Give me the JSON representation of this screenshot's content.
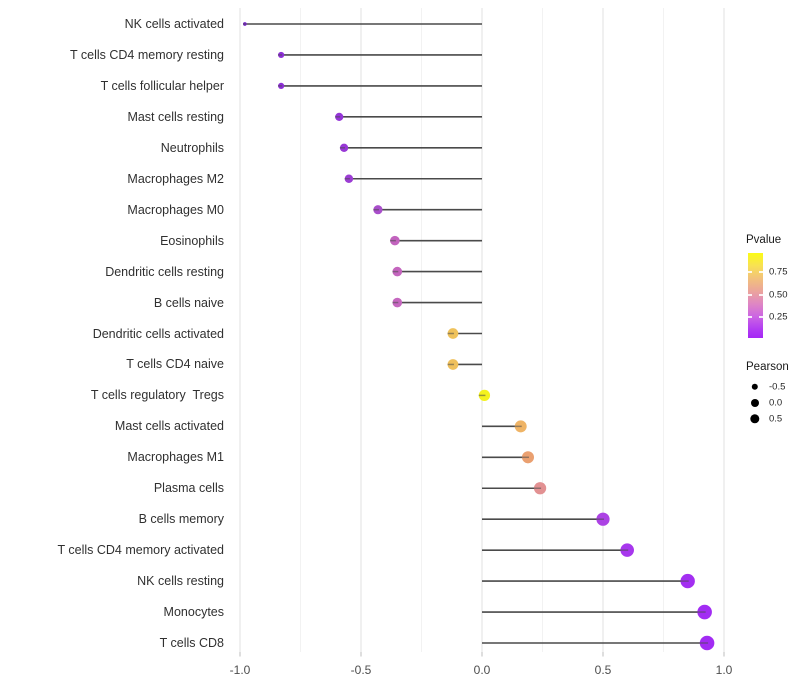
{
  "chart_data": {
    "type": "lollipop",
    "orientation": "horizontal",
    "title": "",
    "xlabel": "",
    "ylabel": "",
    "categories": [
      "NK cells activated",
      "T cells CD4 memory resting",
      "T cells follicular helper",
      "Mast cells resting",
      "Neutrophils",
      "Macrophages M2",
      "Macrophages M0",
      "Eosinophils",
      "Dendritic cells resting",
      "B cells naive",
      "Dendritic cells activated",
      "T cells CD4 naive",
      "T cells regulatory  Tregs",
      "Mast cells activated",
      "Macrophages M1",
      "Plasma cells",
      "B cells memory",
      "T cells CD4 memory activated",
      "NK cells resting",
      "Monocytes",
      "T cells CD8"
    ],
    "series": [
      {
        "name": "Pearson",
        "values": [
          -0.98,
          -0.83,
          -0.83,
          -0.59,
          -0.57,
          -0.55,
          -0.43,
          -0.36,
          -0.35,
          -0.35,
          -0.12,
          -0.12,
          0.01,
          0.16,
          0.19,
          0.24,
          0.5,
          0.6,
          0.85,
          0.92,
          0.93
        ]
      }
    ],
    "point_colors": [
      "#7B24D1",
      "#8C2ED6",
      "#8C2ED6",
      "#9535D8",
      "#9838D6",
      "#9C3DD4",
      "#A94ECB",
      "#C263BE",
      "#C465BE",
      "#C567BF",
      "#EFC25B",
      "#EFC05C",
      "#F4F21E",
      "#EFB466",
      "#EAA070",
      "#E29192",
      "#AC42E4",
      "#A737ED",
      "#A32FF1",
      "#A22CF3",
      "#A22BF3"
    ],
    "xlim": [
      -1.05,
      1.05
    ],
    "x_ticks": [
      -1.0,
      -0.5,
      0.0,
      0.5,
      1.0
    ],
    "x_tick_labels": [
      "-1.0",
      "-0.5",
      "0.0",
      "0.5",
      "1.0"
    ],
    "x_minor_ticks": [
      -0.75,
      -0.25,
      0.25,
      0.75
    ],
    "grid": "vertical major and minor, light gray on white",
    "legend_position": "right",
    "stem_color": "#4A4A4A"
  },
  "legend": {
    "pvalue": {
      "title": "Pvalue",
      "tick_labels": [
        "0.75",
        "0.50",
        "0.25"
      ],
      "tick_values": [
        0.75,
        0.5,
        0.25
      ],
      "gradient_top_color": "#FBFB15",
      "gradient_mid_color": "#EBA49C",
      "gradient_bottom_color": "#A527F5"
    },
    "pearson": {
      "title": "Pearson",
      "items": [
        {
          "label": "-0.5",
          "value": -0.5
        },
        {
          "label": "0.0",
          "value": 0.0
        },
        {
          "label": "0.5",
          "value": 0.5
        }
      ],
      "dot_color": "#000000"
    }
  }
}
